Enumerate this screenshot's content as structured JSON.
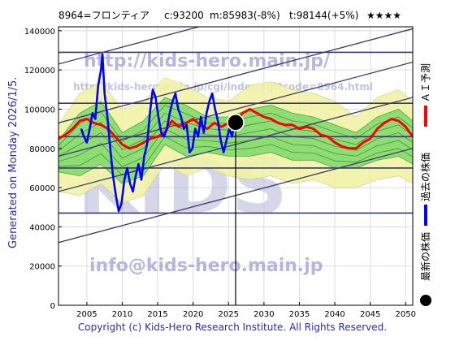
{
  "header": {
    "ticker": "8964=フロンティア",
    "current": "c:93200",
    "mean": "m:85983(-8%)",
    "target": "t:98144(+5%)",
    "stars": "★★★★"
  },
  "side_left": "Generated on Monday 2026/1/5.",
  "footer": "Copyright (c) Kids-Hero Research Institute. All Rights Reserved.",
  "watermarks": {
    "url_big": "http://kids-hero.main.jp/",
    "url_small": "http://kids-hero.main.jp/cgi/index.cgi?code=8964.html",
    "logo": "KIDS",
    "email": "info@kids-hero.main.jp"
  },
  "legend": [
    {
      "label": "ＡＩ予測",
      "color": "#ff0000",
      "marker": "line"
    },
    {
      "label": "過去の株価",
      "color": "#0000ff",
      "marker": "line"
    },
    {
      "label": "最新の株価",
      "color": "#000000",
      "marker": "dot"
    }
  ],
  "chart_data": {
    "type": "line",
    "title": "",
    "xlabel": "",
    "ylabel": "",
    "xlim": [
      2001,
      2051
    ],
    "ylim": [
      0,
      142000
    ],
    "xticks": [
      2005,
      2010,
      2015,
      2020,
      2025,
      2030,
      2035,
      2040,
      2045,
      2050
    ],
    "yticks": [
      0,
      20000,
      40000,
      60000,
      80000,
      100000,
      120000,
      140000
    ],
    "ytick_labels": [
      "0",
      "20000",
      "40000",
      "60000",
      "80000",
      "100000",
      "120000",
      "140000"
    ],
    "grid": true,
    "current_point": {
      "x": 2026.0,
      "y": 93200
    },
    "horizontal_levels": [
      129000,
      103000,
      86000,
      70000,
      47000
    ],
    "trend_channels": [
      {
        "x": [
          2001,
          2051
        ],
        "y": [
          123000,
          171000
        ]
      },
      {
        "x": [
          2001,
          2051
        ],
        "y": [
          93000,
          141000
        ]
      },
      {
        "x": [
          2001,
          2051
        ],
        "y": [
          76000,
          124000
        ]
      },
      {
        "x": [
          2001,
          2051
        ],
        "y": [
          58000,
          106000
        ]
      },
      {
        "x": [
          2001,
          2051
        ],
        "y": [
          32000,
          80000
        ]
      }
    ],
    "band_outer": {
      "x": [
        2001,
        2004,
        2007,
        2010,
        2013,
        2016,
        2019,
        2022,
        2025,
        2028,
        2031,
        2034,
        2037,
        2040,
        2043,
        2046,
        2049,
        2051
      ],
      "upper": [
        92000,
        108000,
        114000,
        100000,
        104000,
        116000,
        112000,
        106000,
        104000,
        112000,
        114000,
        110000,
        108000,
        104000,
        96000,
        106000,
        110000,
        104000
      ],
      "lower": [
        58000,
        56000,
        62000,
        52000,
        56000,
        72000,
        66000,
        70000,
        66000,
        64000,
        66000,
        62000,
        64000,
        60000,
        60000,
        64000,
        66000,
        62000
      ]
    },
    "band_inner": {
      "x": [
        2001,
        2004,
        2007,
        2010,
        2013,
        2016,
        2019,
        2022,
        2025,
        2028,
        2031,
        2034,
        2037,
        2040,
        2043,
        2046,
        2049,
        2051
      ],
      "upper": [
        84000,
        98000,
        104000,
        88000,
        94000,
        106000,
        102000,
        96000,
        96000,
        100000,
        102000,
        98000,
        96000,
        92000,
        88000,
        96000,
        100000,
        94000
      ],
      "lower": [
        68000,
        66000,
        72000,
        62000,
        66000,
        82000,
        76000,
        78000,
        76000,
        76000,
        78000,
        74000,
        74000,
        70000,
        70000,
        74000,
        76000,
        72000
      ]
    },
    "series": [
      {
        "name": "ＡＩ予測",
        "color": "#ff0000",
        "x": [
          2001,
          2002,
          2003,
          2004,
          2005,
          2006,
          2007,
          2008,
          2009,
          2010,
          2011,
          2012,
          2013,
          2014,
          2015,
          2016,
          2017,
          2018,
          2019,
          2020,
          2021,
          2022,
          2023,
          2024,
          2025,
          2026,
          2027,
          2028,
          2029,
          2030,
          2031,
          2032,
          2033,
          2034,
          2035,
          2036,
          2037,
          2038,
          2039,
          2040,
          2041,
          2042,
          2043,
          2044,
          2045,
          2046,
          2047,
          2048,
          2049,
          2050,
          2051
        ],
        "y": [
          85000,
          87000,
          90000,
          94000,
          95000,
          93000,
          92000,
          90000,
          86000,
          82000,
          80000,
          81000,
          83000,
          85000,
          86000,
          88000,
          94000,
          91000,
          93000,
          95000,
          92000,
          90000,
          93000,
          91000,
          93000,
          94000,
          98000,
          100000,
          98000,
          96000,
          95000,
          93000,
          92000,
          92000,
          90000,
          91000,
          90000,
          87000,
          86000,
          83000,
          81000,
          80000,
          80000,
          83000,
          85000,
          90000,
          93000,
          95000,
          94000,
          91000,
          86000
        ]
      },
      {
        "name": "過去の株価",
        "color": "#0000ff",
        "x": [
          2004.2,
          2004.6,
          2005.0,
          2005.4,
          2005.8,
          2006.2,
          2006.6,
          2007.0,
          2007.2,
          2007.5,
          2007.9,
          2008.3,
          2008.7,
          2009.1,
          2009.5,
          2009.9,
          2010.3,
          2010.7,
          2011.1,
          2011.5,
          2011.9,
          2012.3,
          2012.7,
          2013.1,
          2013.5,
          2013.9,
          2014.3,
          2014.7,
          2015.1,
          2015.5,
          2015.9,
          2016.3,
          2016.7,
          2017.1,
          2017.5,
          2017.9,
          2018.3,
          2018.7,
          2019.1,
          2019.5,
          2019.9,
          2020.3,
          2020.7,
          2021.1,
          2021.5,
          2021.9,
          2022.3,
          2022.7,
          2023.1,
          2023.5,
          2023.9,
          2024.3,
          2024.7,
          2025.1,
          2025.5,
          2025.8
        ],
        "y": [
          90000,
          86000,
          83000,
          90000,
          98000,
          95000,
          112000,
          120000,
          128000,
          108000,
          96000,
          80000,
          66000,
          56000,
          48000,
          52000,
          64000,
          70000,
          62000,
          58000,
          66000,
          72000,
          64000,
          76000,
          82000,
          98000,
          110000,
          106000,
          96000,
          88000,
          86000,
          90000,
          98000,
          104000,
          108000,
          100000,
          96000,
          90000,
          92000,
          78000,
          80000,
          90000,
          86000,
          96000,
          88000,
          98000,
          104000,
          108000,
          100000,
          94000,
          84000,
          78000,
          84000,
          90000,
          86000,
          93200
        ]
      }
    ]
  }
}
